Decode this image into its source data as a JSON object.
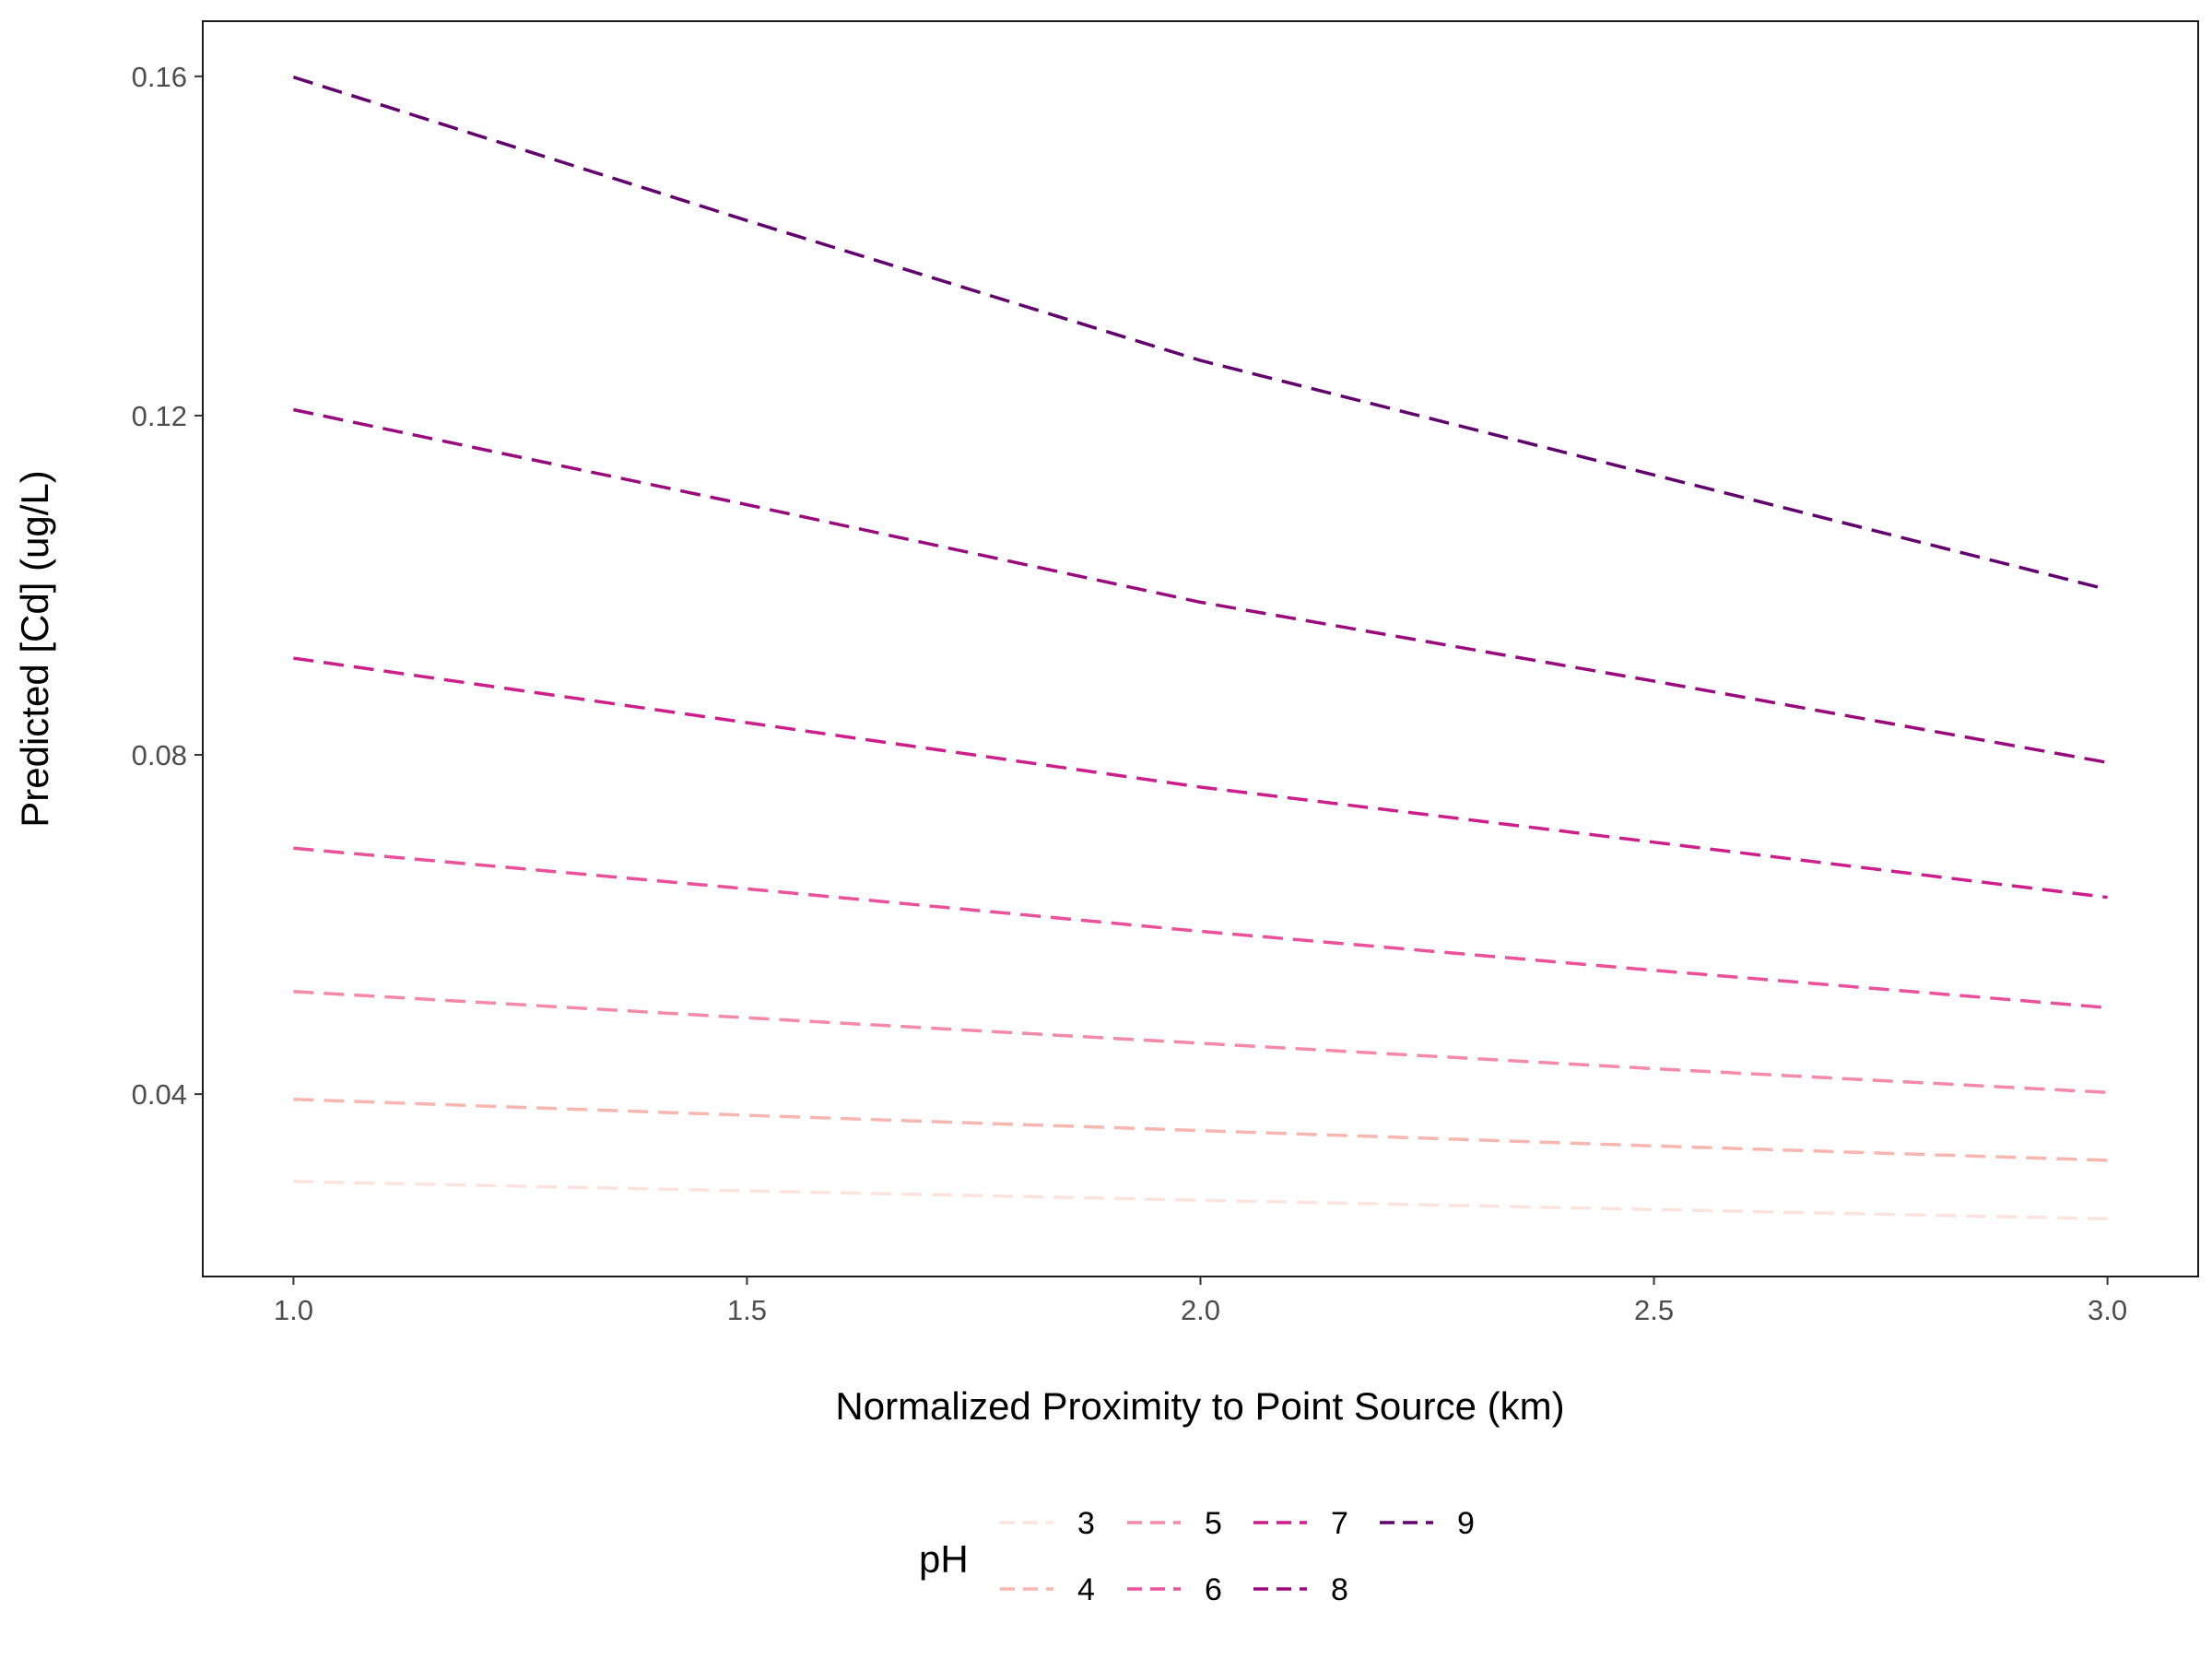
{
  "chart_data": {
    "type": "line",
    "title": "",
    "xlabel": "Normalized Proximity to Point Source (km)",
    "ylabel": "Predicted [Cd] (ug/L)",
    "xlim": [
      0.9,
      3.1
    ],
    "ylim": [
      0.0185,
      0.1665
    ],
    "x_ticks": [
      "1.0",
      "1.5",
      "2.0",
      "2.5",
      "3.0"
    ],
    "y_ticks": [
      "0.04",
      "0.08",
      "0.12",
      "0.16"
    ],
    "grid": false,
    "line_style": "dashed",
    "legend": {
      "title": "pH",
      "position": "bottom"
    },
    "x": [
      1.0,
      1.5,
      2.0,
      2.5,
      3.0
    ],
    "series": [
      {
        "name": "3",
        "color": "#fce3dd",
        "values": [
          0.0297,
          0.0286,
          0.0275,
          0.0264,
          0.0253
        ]
      },
      {
        "name": "4",
        "color": "#f8b6b0",
        "values": [
          0.0394,
          0.0375,
          0.0357,
          0.0339,
          0.0322
        ]
      },
      {
        "name": "5",
        "color": "#f48aa7",
        "values": [
          0.0521,
          0.049,
          0.046,
          0.043,
          0.0402
        ]
      },
      {
        "name": "6",
        "color": "#ea519a",
        "values": [
          0.069,
          0.0642,
          0.0592,
          0.0546,
          0.0502
        ]
      },
      {
        "name": "7",
        "color": "#cd1f8b",
        "values": [
          0.0914,
          0.0838,
          0.0762,
          0.0697,
          0.0632
        ]
      },
      {
        "name": "8",
        "color": "#990a7c",
        "values": [
          0.1207,
          0.1095,
          0.098,
          0.0887,
          0.0791
        ]
      },
      {
        "name": "9",
        "color": "#62006e",
        "values": [
          0.1599,
          0.143,
          0.1265,
          0.113,
          0.0995
        ]
      }
    ]
  }
}
